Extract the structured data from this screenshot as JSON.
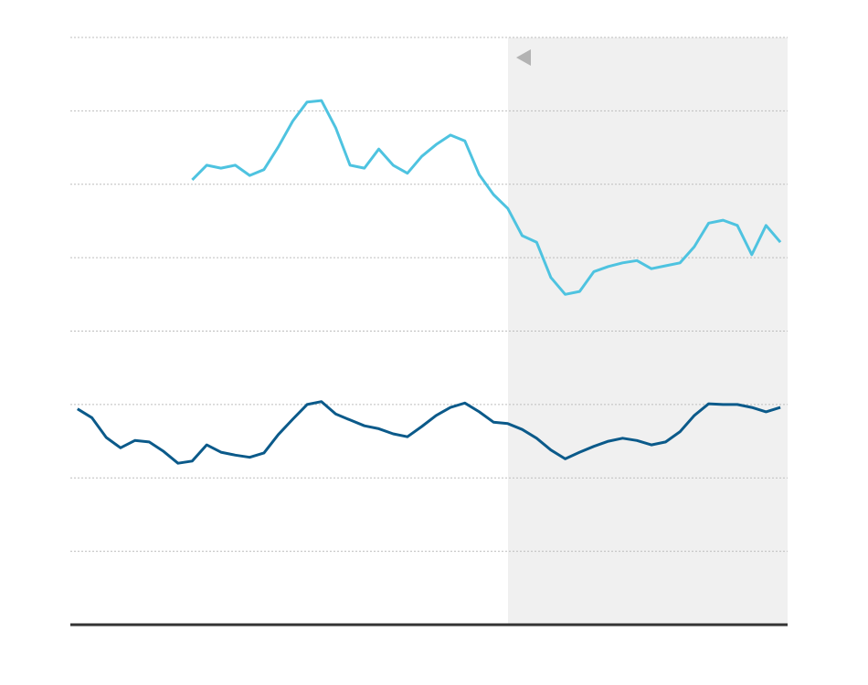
{
  "chart_data": {
    "type": "line",
    "categories": [
      null,
      null,
      null,
      null,
      null,
      null,
      null,
      null,
      null,
      null,
      null,
      null,
      null,
      null,
      null,
      null,
      null,
      null,
      null,
      null,
      null,
      null,
      null,
      null,
      null,
      null,
      null,
      null,
      null,
      null,
      null,
      null,
      null,
      null,
      null,
      null,
      null,
      null,
      null,
      null,
      null,
      null,
      null,
      null,
      null,
      null,
      null,
      null,
      null,
      null
    ],
    "series": [
      {
        "color": "#4ec3e0",
        "values": [
          null,
          null,
          null,
          null,
          null,
          null,
          null,
          null,
          6.06,
          6.26,
          6.22,
          6.26,
          6.12,
          6.2,
          6.51,
          6.86,
          7.12,
          7.14,
          6.77,
          6.26,
          6.22,
          6.48,
          6.26,
          6.15,
          6.38,
          6.54,
          6.67,
          6.59,
          6.13,
          5.86,
          5.67,
          5.3,
          5.21,
          4.73,
          4.5,
          4.54,
          4.81,
          4.88,
          4.93,
          4.96,
          4.85,
          4.89,
          4.93,
          5.15,
          5.47,
          5.51,
          5.44,
          5.04,
          5.44,
          5.21
        ]
      },
      {
        "color": "#0b5a8a",
        "values": [
          2.94,
          2.82,
          2.55,
          2.41,
          2.51,
          2.49,
          2.36,
          2.2,
          2.23,
          2.45,
          2.35,
          2.31,
          2.28,
          2.34,
          2.59,
          2.8,
          3.0,
          3.04,
          2.87,
          2.79,
          2.71,
          2.67,
          2.6,
          2.56,
          2.7,
          2.85,
          2.96,
          3.02,
          2.9,
          2.76,
          2.74,
          2.66,
          2.54,
          2.38,
          2.26,
          2.35,
          2.43,
          2.5,
          2.54,
          2.51,
          2.45,
          2.49,
          2.63,
          2.85,
          3.01,
          3.0,
          3.0,
          2.96,
          2.9,
          2.96
        ]
      }
    ],
    "ylim": [
      0,
      8
    ],
    "yticks": [
      1,
      2,
      3,
      4,
      5,
      6,
      7,
      8
    ],
    "grid": true
  }
}
